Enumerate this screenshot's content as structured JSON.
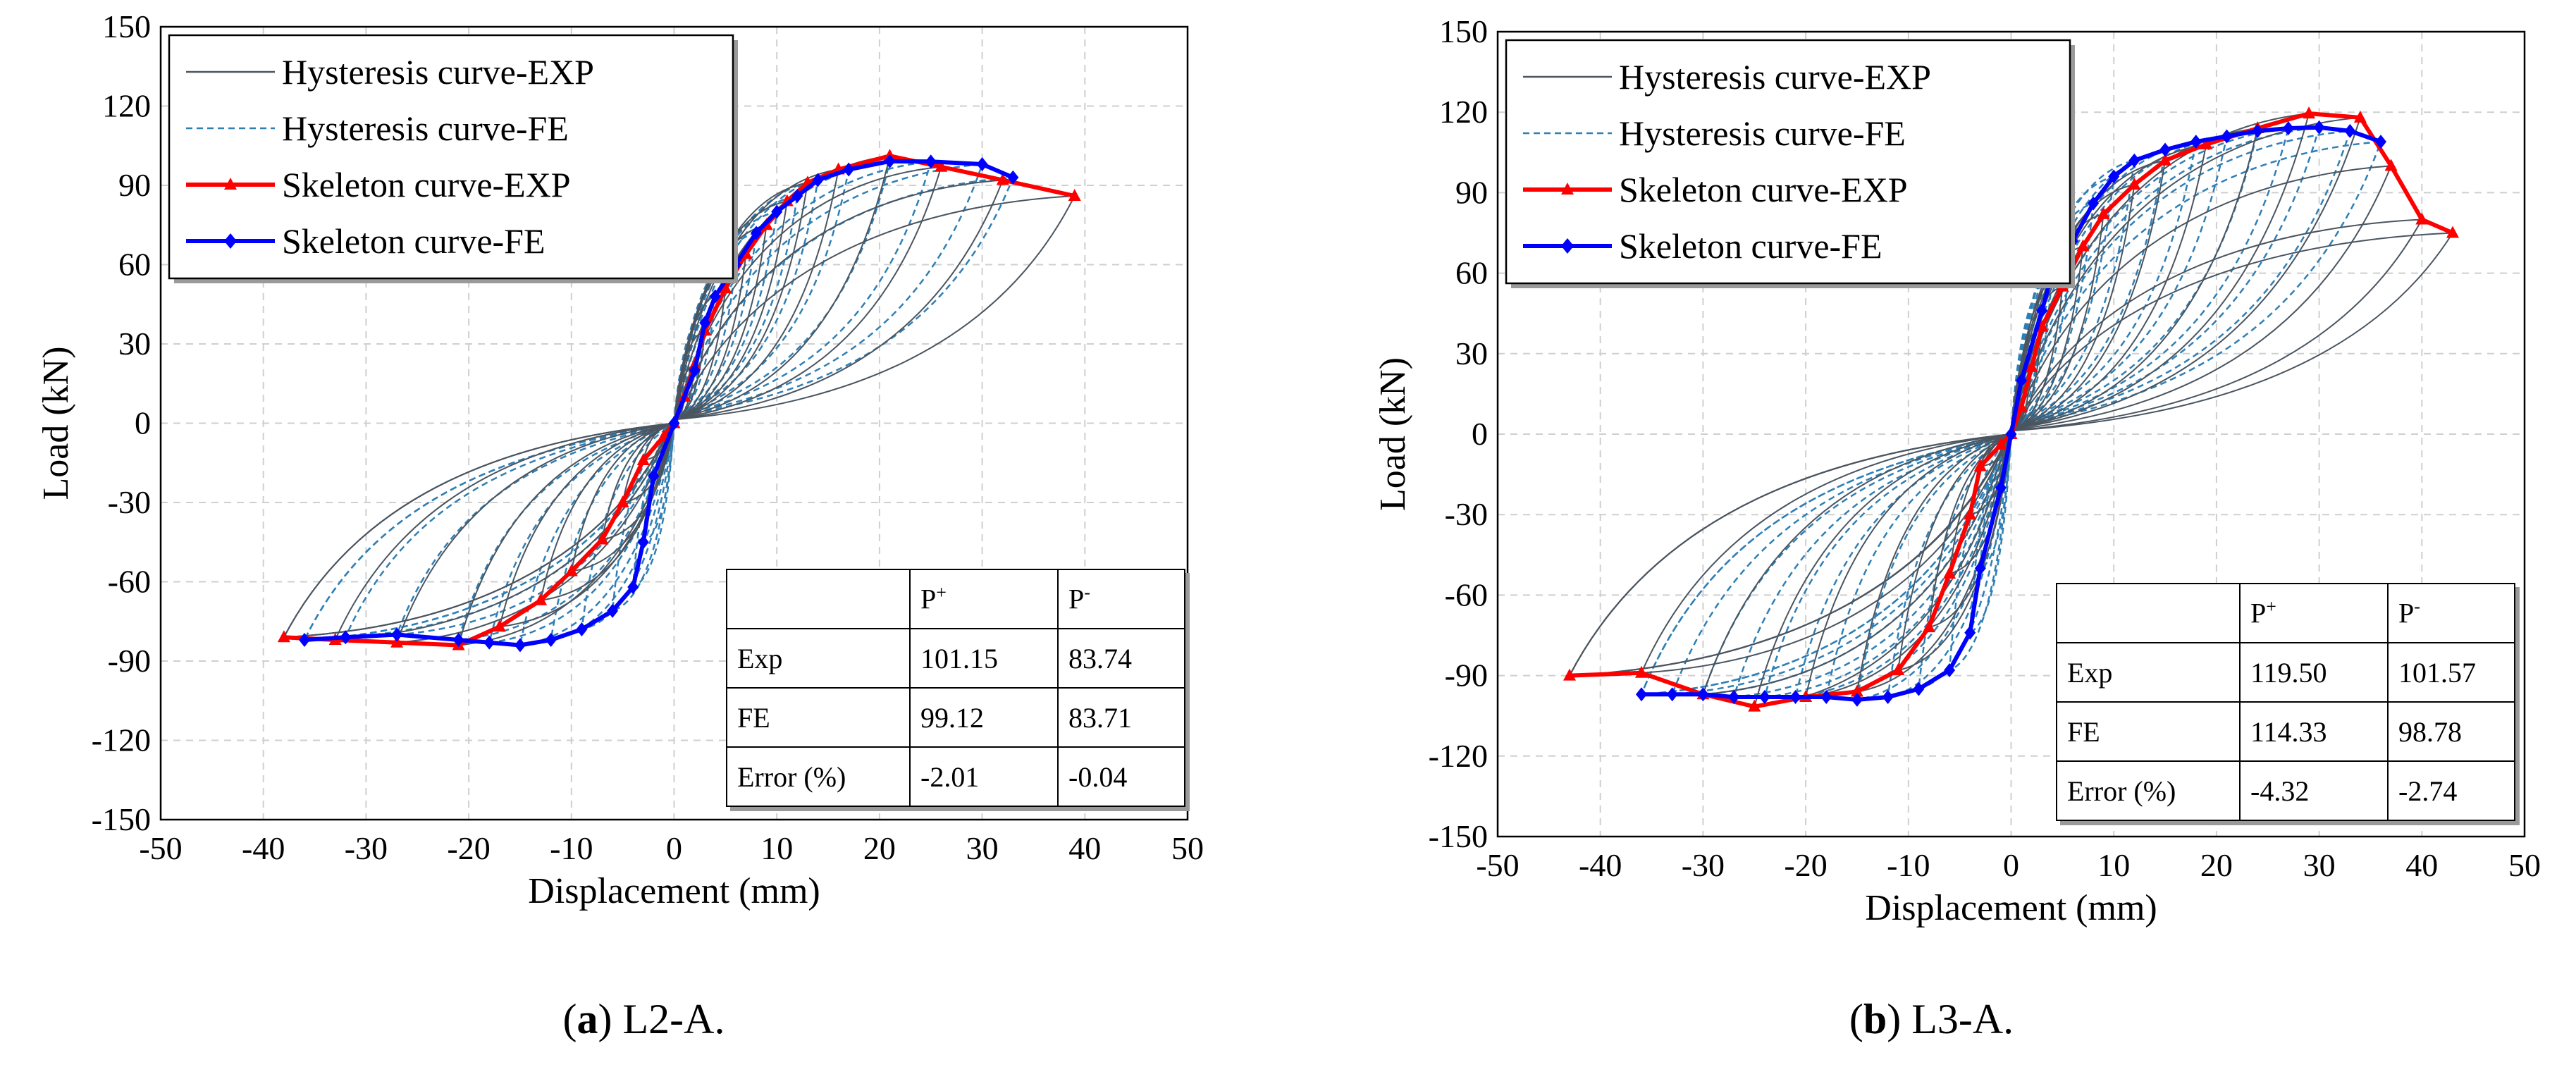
{
  "chart_data": [
    {
      "type": "line",
      "panel_label": "a",
      "caption": "L2-A.",
      "xlabel": "Displacement (mm)",
      "ylabel": "Load (kN)",
      "xlim": [
        -50,
        50
      ],
      "ylim": [
        -150,
        150
      ],
      "xticks": [
        -50,
        -40,
        -30,
        -20,
        -10,
        0,
        10,
        20,
        30,
        40,
        50
      ],
      "yticks": [
        150,
        120,
        90,
        60,
        30,
        0,
        -30,
        -60,
        -90,
        -120,
        -150
      ],
      "grid": true,
      "legend_position": "top-left",
      "legend": [
        {
          "name": "Hysteresis curve-EXP",
          "style": "thin-solid",
          "color": "#4a5560"
        },
        {
          "name": "Hysteresis curve-FE",
          "style": "dashed",
          "color": "#2f7fb5"
        },
        {
          "name": "Skeleton curve-EXP",
          "style": "solid-triangle",
          "color": "#ff0000"
        },
        {
          "name": "Skeleton curve-FE",
          "style": "solid-diamond",
          "color": "#0000ff"
        }
      ],
      "series": [
        {
          "name": "Skeleton curve-EXP",
          "points": [
            [
              -38,
              -81
            ],
            [
              -33,
              -82
            ],
            [
              -27,
              -83
            ],
            [
              -21,
              -84
            ],
            [
              -17,
              -77
            ],
            [
              -13,
              -67
            ],
            [
              -10,
              -56
            ],
            [
              -7,
              -44
            ],
            [
              -5,
              -30
            ],
            [
              -3,
              -14
            ],
            [
              -1,
              -5
            ],
            [
              0,
              0
            ],
            [
              1,
              10
            ],
            [
              2,
              22
            ],
            [
              3,
              35
            ],
            [
              5,
              51
            ],
            [
              7,
              64
            ],
            [
              9,
              75
            ],
            [
              11,
              84
            ],
            [
              13,
              91
            ],
            [
              16,
              96
            ],
            [
              21,
              101.15
            ],
            [
              26,
              97
            ],
            [
              32,
              92
            ],
            [
              39,
              86
            ]
          ]
        },
        {
          "name": "Skeleton curve-FE",
          "points": [
            [
              -36,
              -82
            ],
            [
              -32,
              -81
            ],
            [
              -27,
              -80
            ],
            [
              -21,
              -82
            ],
            [
              -18,
              -83
            ],
            [
              -15,
              -84
            ],
            [
              -12,
              -82
            ],
            [
              -9,
              -78
            ],
            [
              -6,
              -71
            ],
            [
              -4,
              -62
            ],
            [
              -3,
              -45
            ],
            [
              -2,
              -20
            ],
            [
              0,
              0
            ],
            [
              2,
              20
            ],
            [
              3,
              38
            ],
            [
              4,
              48
            ],
            [
              6,
              60
            ],
            [
              8,
              72
            ],
            [
              10,
              80
            ],
            [
              12,
              86
            ],
            [
              14,
              92
            ],
            [
              17,
              96
            ],
            [
              21,
              99.12
            ],
            [
              25,
              99
            ],
            [
              30,
              98
            ],
            [
              33,
              93
            ]
          ]
        }
      ],
      "table": {
        "headers": [
          "",
          "P+",
          "P-"
        ],
        "rows": [
          [
            "Exp",
            "101.15",
            "83.74"
          ],
          [
            "FE",
            "99.12",
            "83.71"
          ],
          [
            "Error (%)",
            "-2.01",
            "-0.04"
          ]
        ]
      }
    },
    {
      "type": "line",
      "panel_label": "b",
      "caption": "L3-A.",
      "xlabel": "Displacement (mm)",
      "ylabel": "Load (kN)",
      "xlim": [
        -50,
        50
      ],
      "ylim": [
        -150,
        150
      ],
      "xticks": [
        -50,
        -40,
        -30,
        -20,
        -10,
        0,
        10,
        20,
        30,
        40,
        50
      ],
      "yticks": [
        150,
        120,
        90,
        60,
        30,
        0,
        -30,
        -60,
        -90,
        -120,
        -150
      ],
      "grid": true,
      "legend_position": "top-left",
      "legend": [
        {
          "name": "Hysteresis curve-EXP",
          "style": "thin-solid",
          "color": "#4a5560"
        },
        {
          "name": "Hysteresis curve-FE",
          "style": "dashed",
          "color": "#2f7fb5"
        },
        {
          "name": "Skeleton curve-EXP",
          "style": "solid-triangle",
          "color": "#ff0000"
        },
        {
          "name": "Skeleton curve-FE",
          "style": "solid-diamond",
          "color": "#0000ff"
        }
      ],
      "series": [
        {
          "name": "Skeleton curve-EXP",
          "points": [
            [
              -43,
              -90
            ],
            [
              -36,
              -89
            ],
            [
              -30,
              -97
            ],
            [
              -25,
              -101.57
            ],
            [
              -20,
              -98
            ],
            [
              -15,
              -96
            ],
            [
              -11,
              -88
            ],
            [
              -8,
              -72
            ],
            [
              -6,
              -52
            ],
            [
              -4,
              -30
            ],
            [
              -3,
              -12
            ],
            [
              -1,
              -4
            ],
            [
              0,
              0
            ],
            [
              1,
              10
            ],
            [
              2,
              25
            ],
            [
              3,
              40
            ],
            [
              5,
              55
            ],
            [
              7,
              70
            ],
            [
              9,
              82
            ],
            [
              12,
              93
            ],
            [
              15,
              102
            ],
            [
              19,
              108
            ],
            [
              24,
              114
            ],
            [
              29,
              119.5
            ],
            [
              34,
              118
            ],
            [
              37,
              100
            ],
            [
              40,
              80
            ],
            [
              43,
              75
            ]
          ]
        },
        {
          "name": "Skeleton curve-FE",
          "points": [
            [
              -36,
              -97
            ],
            [
              -33,
              -97
            ],
            [
              -30,
              -97
            ],
            [
              -27,
              -98
            ],
            [
              -24,
              -98
            ],
            [
              -21,
              -98
            ],
            [
              -18,
              -98
            ],
            [
              -15,
              -99
            ],
            [
              -12,
              -98
            ],
            [
              -9,
              -95
            ],
            [
              -6,
              -88
            ],
            [
              -4,
              -74
            ],
            [
              -3,
              -50
            ],
            [
              -1,
              -20
            ],
            [
              0,
              0
            ],
            [
              1,
              20
            ],
            [
              3,
              46
            ],
            [
              4,
              60
            ],
            [
              6,
              72
            ],
            [
              8,
              86
            ],
            [
              10,
              96
            ],
            [
              12,
              102
            ],
            [
              15,
              106
            ],
            [
              18,
              109
            ],
            [
              21,
              111
            ],
            [
              24,
              113
            ],
            [
              27,
              114
            ],
            [
              30,
              114.33
            ],
            [
              33,
              113
            ],
            [
              36,
              109
            ]
          ]
        }
      ],
      "table": {
        "headers": [
          "",
          "P+",
          "P-"
        ],
        "rows": [
          [
            "Exp",
            "119.50",
            "101.57"
          ],
          [
            "FE",
            "114.33",
            "98.78"
          ],
          [
            "Error (%)",
            "-4.32",
            "-2.74"
          ]
        ]
      }
    }
  ]
}
